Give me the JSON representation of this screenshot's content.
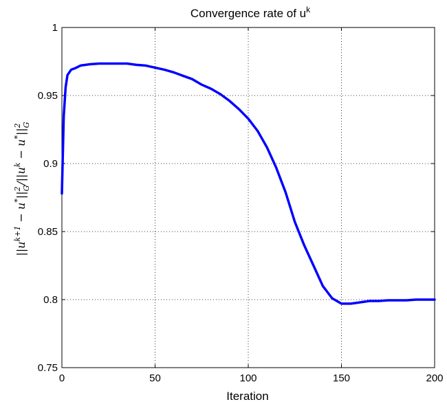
{
  "chart_data": {
    "type": "line",
    "title": "Convergence rate of u",
    "title_superscript": "k",
    "xlabel": "Iteration",
    "ylabel": "||u^{k+1} - u*||_G^2 / ||u^k - u*||_G^2",
    "xlim": [
      0,
      200
    ],
    "ylim": [
      0.75,
      1
    ],
    "xticks": [
      0,
      50,
      100,
      150,
      200
    ],
    "xtick_labels": [
      "0",
      "50",
      "100",
      "150",
      "200"
    ],
    "yticks": [
      0.75,
      0.8,
      0.85,
      0.9,
      0.95,
      1
    ],
    "ytick_labels": [
      "0.75",
      "0.8",
      "0.85",
      "0.9",
      "0.95",
      "1"
    ],
    "grid": true,
    "series": [
      {
        "color": "#0000ff",
        "x": [
          0,
          1,
          2,
          3,
          4,
          5,
          7,
          10,
          15,
          20,
          25,
          30,
          35,
          40,
          45,
          50,
          55,
          60,
          65,
          70,
          75,
          80,
          85,
          90,
          95,
          100,
          105,
          110,
          115,
          120,
          125,
          130,
          135,
          140,
          145,
          150,
          155,
          160,
          165,
          170,
          175,
          180,
          185,
          190,
          195,
          200
        ],
        "y": [
          0.878,
          0.935,
          0.956,
          0.965,
          0.967,
          0.969,
          0.97,
          0.972,
          0.973,
          0.9735,
          0.9735,
          0.9735,
          0.9735,
          0.9725,
          0.972,
          0.9705,
          0.969,
          0.967,
          0.9645,
          0.962,
          0.958,
          0.955,
          0.951,
          0.946,
          0.94,
          0.933,
          0.924,
          0.912,
          0.897,
          0.879,
          0.857,
          0.84,
          0.825,
          0.81,
          0.801,
          0.797,
          0.797,
          0.798,
          0.799,
          0.799,
          0.7995,
          0.7995,
          0.7995,
          0.8,
          0.8,
          0.8
        ]
      }
    ]
  }
}
